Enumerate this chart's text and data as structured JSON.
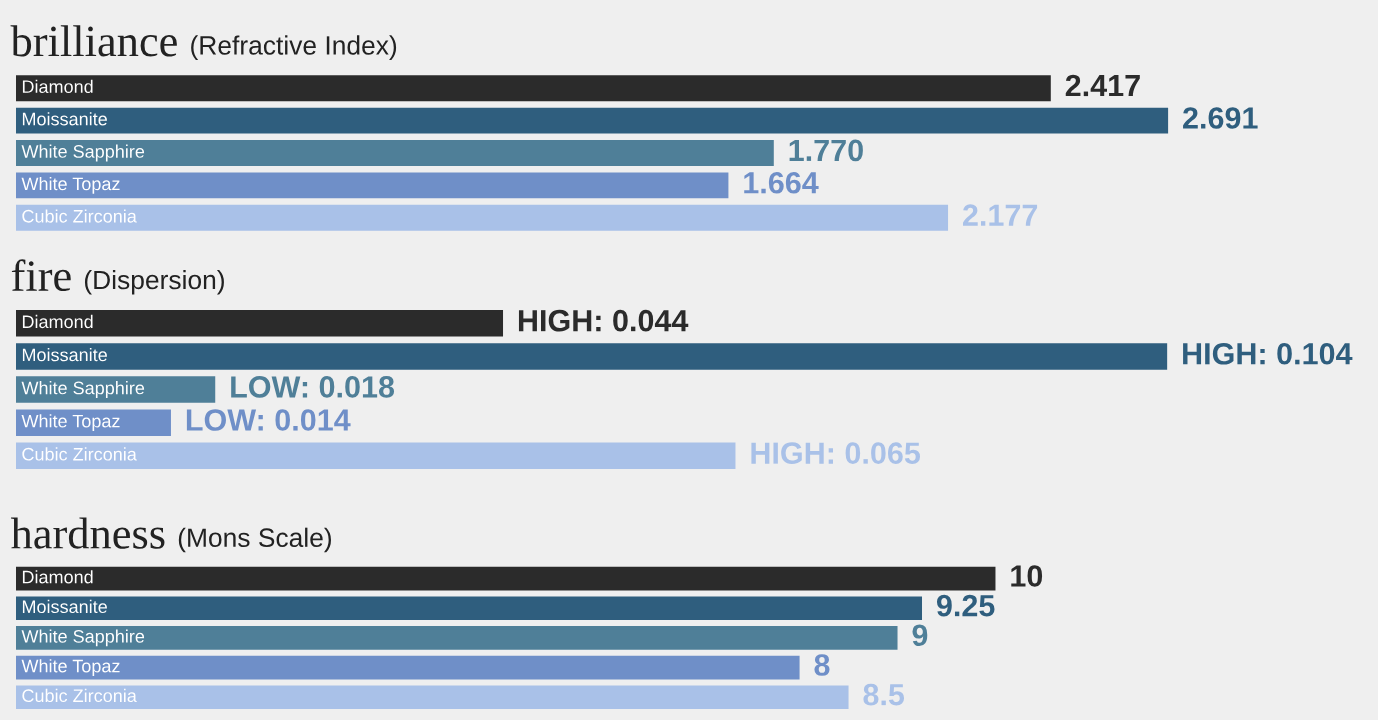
{
  "chart_data": [
    {
      "type": "bar",
      "orientation": "horizontal",
      "title": "brilliance",
      "subtitle": "(Refractive Index)",
      "categories": [
        "Diamond",
        "Moissanite",
        "White Sapphire",
        "White Topaz",
        "Cubic Zirconia"
      ],
      "values": [
        2.417,
        2.691,
        1.77,
        1.664,
        2.177
      ],
      "value_labels": [
        "2.417",
        "2.691",
        "1.770",
        "1.664",
        "2.177"
      ],
      "colors": [
        "#2b2b2b",
        "#2f5e7e",
        "#4f7f98",
        "#6f8fc8",
        "#a9c1e8"
      ],
      "xlim": [
        0,
        3.18
      ],
      "tick_labels": false
    },
    {
      "type": "bar",
      "orientation": "horizontal",
      "title": "fire",
      "subtitle": "(Dispersion)",
      "categories": [
        "Diamond",
        "Moissanite",
        "White Sapphire",
        "White Topaz",
        "Cubic Zirconia"
      ],
      "values": [
        0.044,
        0.104,
        0.018,
        0.014,
        0.065
      ],
      "value_labels": [
        "HIGH: 0.044",
        "HIGH: 0.104",
        "LOW: 0.018",
        "LOW: 0.014",
        "HIGH: 0.065"
      ],
      "colors": [
        "#2b2b2b",
        "#2f5e7e",
        "#4f7f98",
        "#6f8fc8",
        "#a9c1e8"
      ],
      "xlim": [
        0,
        0.123
      ],
      "tick_labels": false
    },
    {
      "type": "bar",
      "orientation": "horizontal",
      "title": "hardness",
      "subtitle": "(Mons Scale)",
      "categories": [
        "Diamond",
        "Moissanite",
        "White Sapphire",
        "White Topaz",
        "Cubic Zirconia"
      ],
      "values": [
        10,
        9.25,
        9,
        8,
        8.5
      ],
      "colors": [
        "#2b2b2b",
        "#2f5e7e",
        "#4f7f98",
        "#6f8fc8",
        "#a9c1e8"
      ],
      "xlim": [
        0,
        13.9
      ],
      "data_labels": true,
      "tick_labels": false
    }
  ]
}
